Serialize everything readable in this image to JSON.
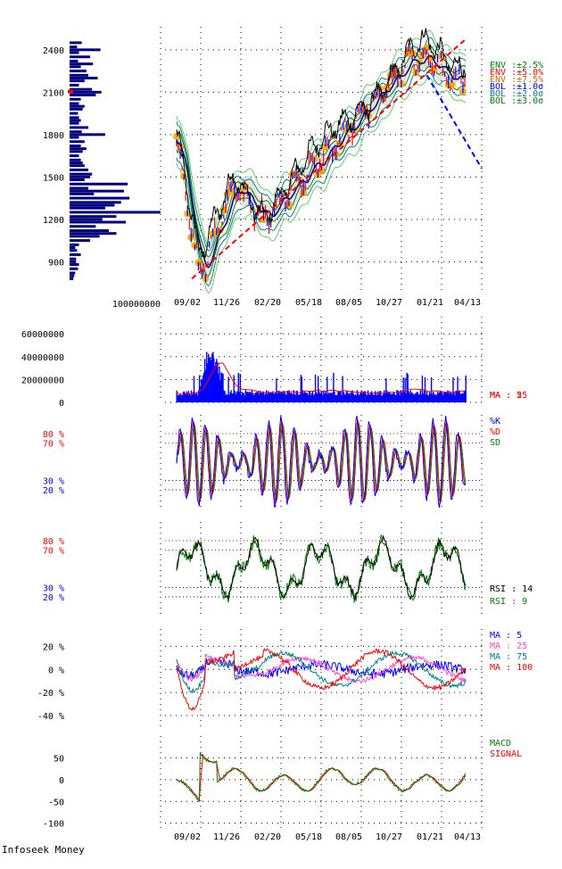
{
  "footer": "Infoseek Money",
  "x_ticks": [
    "09/02",
    "11/26",
    "02/20",
    "05/18",
    "08/05",
    "10/27",
    "01/21",
    "04/13"
  ],
  "colors": {
    "price": "#000000",
    "volume": "#0000ff",
    "dark_navy": "#000080",
    "red": "#ff0000",
    "green": "#008000",
    "blue": "#0000ff",
    "orange": "#ffa500",
    "magenta": "#ff44cc",
    "teal": "#008080",
    "grid": "#000000"
  },
  "chart_data": [
    {
      "type": "line",
      "panel": "price",
      "title": "",
      "y_ticks": [
        "2400",
        "2100",
        "1800",
        "1500",
        "1200",
        "900"
      ],
      "ylim": [
        700,
        2500
      ],
      "volume_profile_label": "100000000",
      "volume_profile_price": [
        2450,
        2420,
        2400,
        2380,
        2350,
        2320,
        2300,
        2280,
        2250,
        2220,
        2200,
        2180,
        2150,
        2120,
        2100,
        2080,
        2050,
        2020,
        2000,
        1980,
        1950,
        1920,
        1900,
        1880,
        1850,
        1820,
        1800,
        1780,
        1750,
        1720,
        1700,
        1680,
        1650,
        1620,
        1600,
        1580,
        1550,
        1520,
        1500,
        1480,
        1450,
        1420,
        1400,
        1380,
        1350,
        1320,
        1300,
        1280,
        1250,
        1220,
        1200,
        1180,
        1150,
        1120,
        1100,
        1080,
        1050,
        1020,
        1000,
        980,
        950,
        920,
        900,
        880,
        850,
        820,
        800,
        780
      ],
      "volume_profile_values": [
        0.13,
        0.08,
        0.33,
        0.1,
        0.22,
        0.09,
        0.25,
        0.12,
        0.18,
        0.2,
        0.3,
        0.16,
        0.1,
        0.24,
        0.34,
        0.28,
        0.12,
        0.1,
        0.16,
        0.14,
        0.09,
        0.1,
        0.12,
        0.1,
        0.2,
        0.13,
        0.38,
        0.1,
        0.16,
        0.12,
        0.18,
        0.14,
        0.1,
        0.12,
        0.14,
        0.16,
        0.2,
        0.24,
        0.22,
        0.16,
        0.62,
        0.2,
        0.58,
        0.26,
        0.64,
        0.55,
        0.48,
        0.38,
        0.97,
        0.5,
        0.35,
        0.6,
        0.28,
        0.42,
        0.5,
        0.32,
        0.22,
        0.1,
        0.06,
        0.08,
        0.12,
        0.07,
        0.07,
        0.1,
        0.09,
        0.06,
        0.05,
        0.04
      ],
      "envelope_legend": [
        "ENV :±2.5%",
        "ENV :±5.0%",
        "ENV :±7.5%",
        "BOL :±1.0σ",
        "BOL :±2.0σ",
        "BOL :±3.0σ"
      ],
      "trend_lines": [
        {
          "name": "upper-trend",
          "color": "red",
          "x": [
            0.05,
            0.95
          ],
          "y": [
            780,
            2480
          ]
        },
        {
          "name": "lower-trend",
          "color": "blue",
          "x": [
            0.82,
            1.0
          ],
          "y": [
            2220,
            1560
          ]
        }
      ]
    },
    {
      "type": "bar",
      "panel": "volume",
      "y_ticks": [
        "60000000",
        "40000000",
        "20000000",
        "0"
      ],
      "ylim": [
        0,
        75000000
      ],
      "legend": [
        "MA : 5",
        "MA : 25"
      ]
    },
    {
      "type": "line",
      "panel": "stochastic",
      "y_ticks": [
        "80 %",
        "70 %",
        "30 %",
        "20 %"
      ],
      "ylim": [
        0,
        100
      ],
      "legend": [
        "%K",
        "%D",
        "SD"
      ]
    },
    {
      "type": "line",
      "panel": "rsi",
      "y_ticks": [
        "80 %",
        "70 %",
        "30 %",
        "20 %"
      ],
      "ylim": [
        0,
        100
      ],
      "legend": [
        "RSI : 14",
        "RSI : 9"
      ]
    },
    {
      "type": "line",
      "panel": "deviation",
      "y_ticks": [
        "20 %",
        "0 %",
        "-20 %",
        "-40 %"
      ],
      "ylim": [
        -50,
        35
      ],
      "legend": [
        "MA : 5",
        "MA : 25",
        "MA : 75",
        "MA : 100"
      ]
    },
    {
      "type": "line",
      "panel": "macd",
      "y_ticks": [
        "50",
        "0",
        "-50",
        "-100"
      ],
      "ylim": [
        -115,
        100
      ],
      "legend": [
        "MACD",
        "SIGNAL"
      ]
    }
  ]
}
